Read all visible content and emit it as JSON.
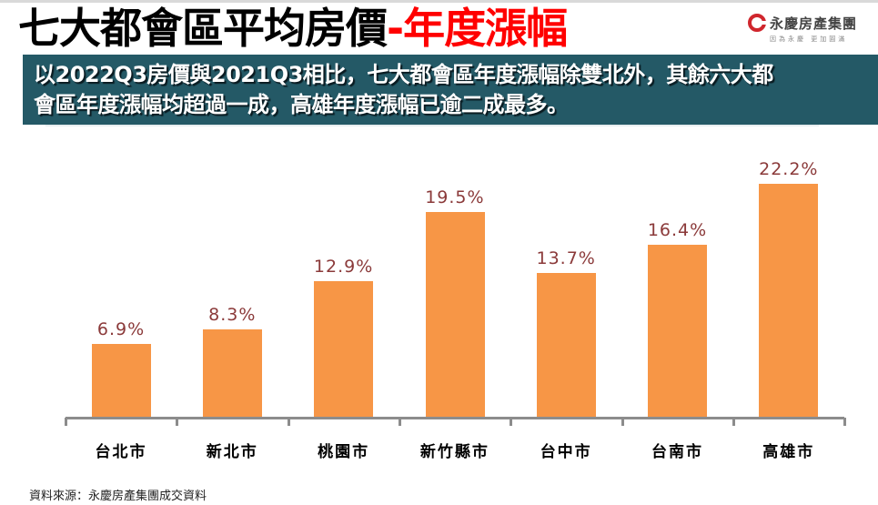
{
  "header": {
    "title_main": "七大都會區平均房價",
    "title_accent": "-年度漲幅",
    "logo": {
      "icon": "brand-circle-icon",
      "name": "永慶房產集團",
      "slogan": "因為永慶 更加圓滿"
    }
  },
  "banner": {
    "line1": "以2022Q3房價與2021Q3相比，七大都會區年度漲幅除雙北外，其餘六大都",
    "line2": "會區年度漲幅均超過一成，高雄年度漲幅已逾二成最多。"
  },
  "colors": {
    "bar": "#F79646",
    "value_label": "#8B3A3A",
    "banner_bg": "#245966",
    "title_accent": "#FF0000",
    "axis": "#8C8C8C"
  },
  "chart_data": {
    "type": "bar",
    "title": "七大都會區平均房價-年度漲幅",
    "xlabel": "",
    "ylabel": "",
    "categories": [
      "台北市",
      "新北市",
      "桃園市",
      "新竹縣市",
      "台中市",
      "台南市",
      "高雄市"
    ],
    "values": [
      6.9,
      8.3,
      12.9,
      19.5,
      13.7,
      16.4,
      22.2
    ],
    "value_labels": [
      "6.9%",
      "8.3%",
      "12.9%",
      "19.5%",
      "13.7%",
      "16.4%",
      "22.2%"
    ],
    "unit": "%",
    "ylim": [
      0,
      25
    ],
    "grid": false,
    "legend": "none",
    "y_axis_visible": false
  },
  "footer": {
    "source": "資料來源：永慶房產集團成交資料"
  }
}
